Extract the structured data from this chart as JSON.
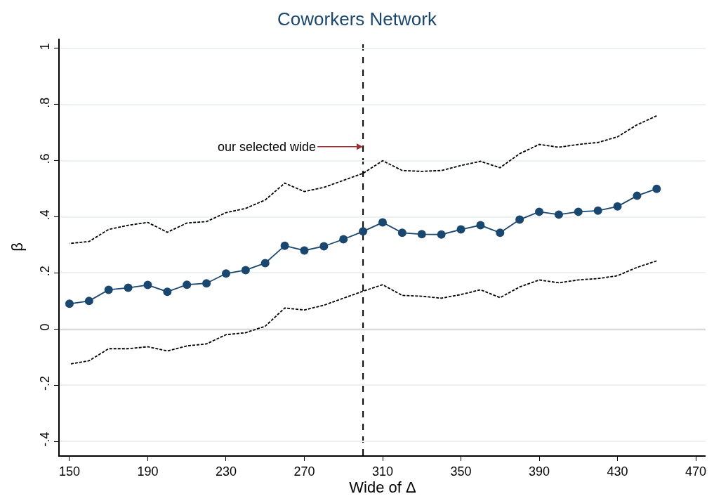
{
  "chart_data": {
    "type": "line",
    "title": "Coworkers Network",
    "xlabel": "Wide of Δ",
    "ylabel": "β",
    "x": [
      150,
      160,
      170,
      180,
      190,
      200,
      210,
      220,
      230,
      240,
      250,
      260,
      270,
      280,
      290,
      300,
      310,
      320,
      330,
      340,
      350,
      360,
      370,
      380,
      390,
      400,
      410,
      420,
      430,
      440,
      450
    ],
    "series": [
      {
        "color": "#000000",
        "marker": "none",
        "line_style": "dashed",
        "values": [
          0.305,
          0.312,
          0.355,
          0.37,
          0.38,
          0.345,
          0.378,
          0.383,
          0.415,
          0.43,
          0.46,
          0.52,
          0.49,
          0.505,
          0.53,
          0.555,
          0.6,
          0.565,
          0.562,
          0.565,
          0.583,
          0.598,
          0.575,
          0.625,
          0.658,
          0.648,
          0.658,
          0.665,
          0.685,
          0.728,
          0.76
        ]
      },
      {
        "color": "#000000",
        "marker": "none",
        "line_style": "dashed",
        "values": [
          -0.125,
          -0.113,
          -0.07,
          -0.07,
          -0.063,
          -0.078,
          -0.06,
          -0.053,
          -0.02,
          -0.013,
          0.01,
          0.075,
          0.068,
          0.085,
          0.11,
          0.135,
          0.158,
          0.12,
          0.117,
          0.11,
          0.123,
          0.14,
          0.112,
          0.15,
          0.175,
          0.165,
          0.175,
          0.18,
          0.19,
          0.22,
          0.243
        ]
      },
      {
        "color": "#1a476f",
        "marker": "circle",
        "line_style": "solid",
        "values": [
          0.09,
          0.1,
          0.14,
          0.147,
          0.157,
          0.133,
          0.158,
          0.163,
          0.198,
          0.21,
          0.235,
          0.297,
          0.28,
          0.295,
          0.32,
          0.348,
          0.38,
          0.343,
          0.338,
          0.337,
          0.355,
          0.37,
          0.343,
          0.39,
          0.418,
          0.408,
          0.418,
          0.422,
          0.437,
          0.475,
          0.5
        ]
      }
    ],
    "xlim": [
      145,
      475
    ],
    "xticks": [
      150,
      190,
      230,
      270,
      310,
      350,
      390,
      430,
      470
    ],
    "ylim": [
      -0.45,
      1.035
    ],
    "yticks": [
      {
        "value": -0.4,
        "label": "-.4"
      },
      {
        "value": -0.2,
        "label": "-.2"
      },
      0,
      {
        "value": 0.2,
        "label": ".2"
      },
      {
        "value": 0.4,
        "label": ".4"
      },
      {
        "value": 0.6,
        "label": ".6"
      },
      {
        "value": 0.8,
        "label": ".8"
      },
      1
    ],
    "ref_lines": [
      {
        "axis": "x",
        "value": 300,
        "color": "#000000",
        "line_style": "dashed"
      },
      {
        "axis": "y",
        "value": 0,
        "color": "#000000",
        "line_style": "solid"
      }
    ],
    "annotations": [
      {
        "text": "our selected wide",
        "x": 300,
        "y": 0.65
      }
    ],
    "grid": "y"
  }
}
